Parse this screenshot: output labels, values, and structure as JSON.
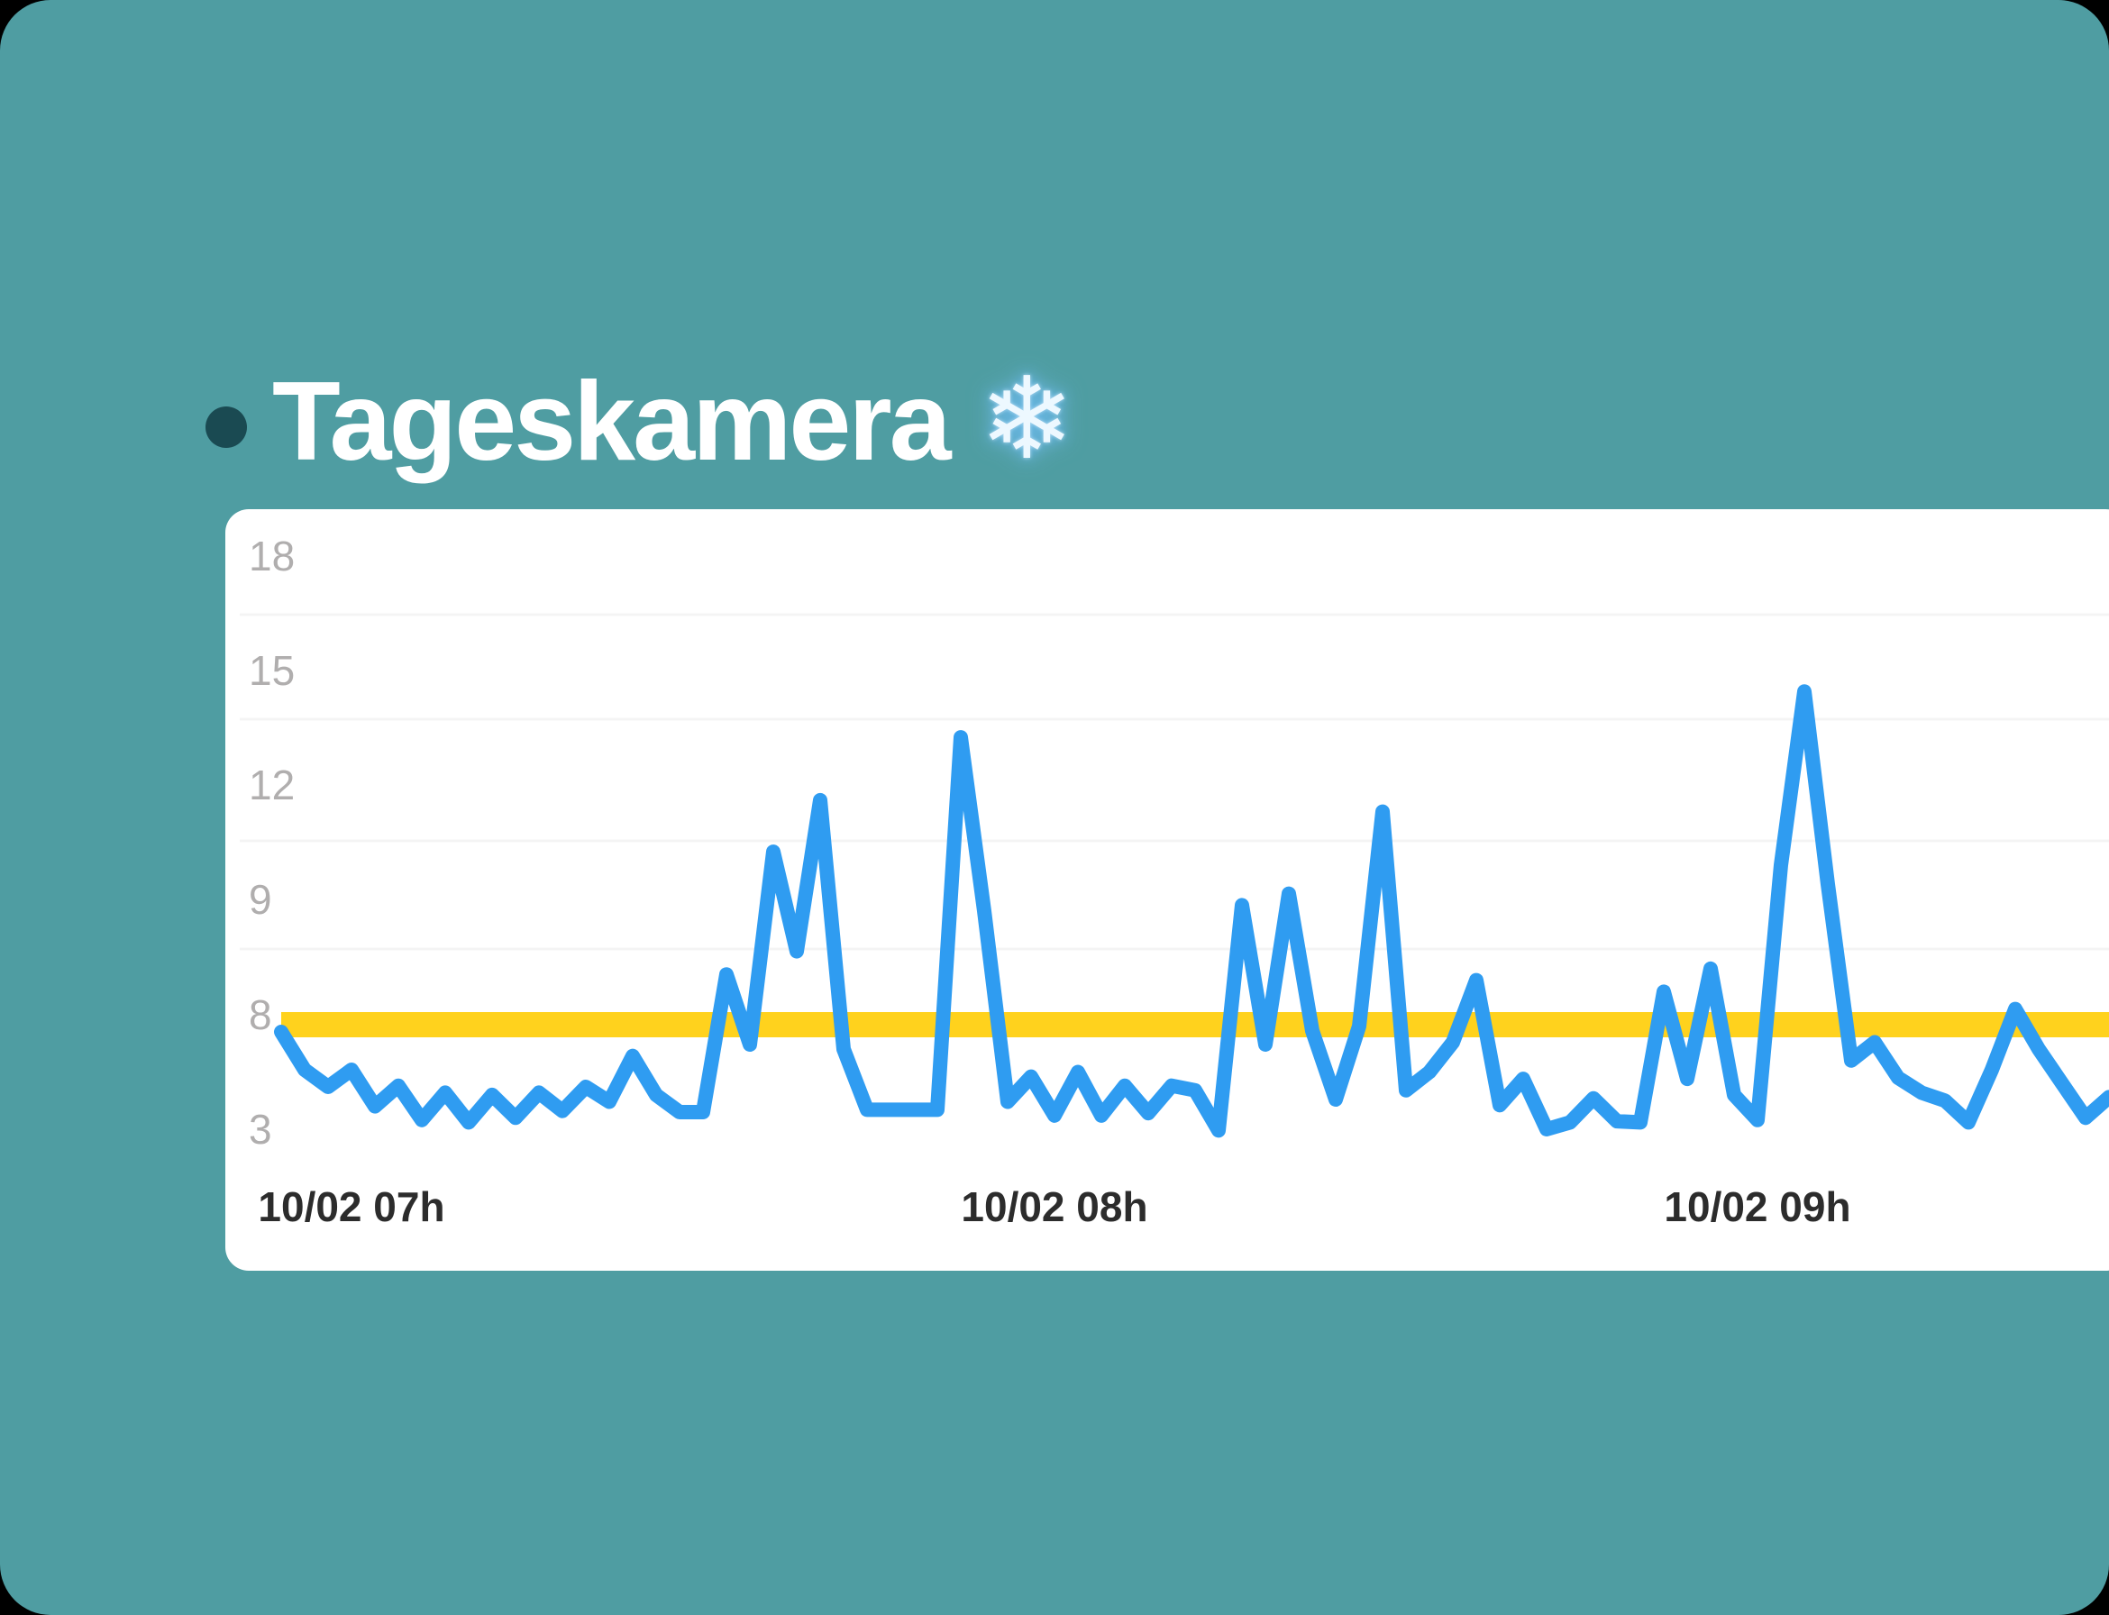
{
  "window": {
    "background_color": "#4F9DA2",
    "outer_background": "#000000"
  },
  "header": {
    "title": "Tageskamera",
    "icon": "snowflake",
    "snowflake_char": "❄",
    "bullet_color": "#1A4A52"
  },
  "card": {
    "background_color": "#FFFFFF"
  },
  "chart_data": {
    "type": "line",
    "title": "Tageskamera",
    "y_axis": {
      "tick_labels": [
        18,
        15,
        12,
        9,
        8,
        3
      ],
      "spacing_note": "ticks rendered evenly spaced top-to-bottom (non-linear value axis)",
      "label_color": "#B0AEAE"
    },
    "x_axis": {
      "tick_labels": [
        "10/02 07h",
        "10/02 08h",
        "10/02 09h"
      ],
      "start_time": "06:54",
      "step_minutes": 2,
      "label_color": "#2C2C2C"
    },
    "threshold": {
      "value": 8,
      "color": "#FFD21D"
    },
    "grid": true,
    "gridline_color": "#F4F4F4",
    "legend_position": "none",
    "series": [
      {
        "name": "Tageskamera",
        "color": "#2F9CF1",
        "values": [
          7.25,
          5.6,
          4.85,
          5.6,
          4.0,
          4.9,
          3.4,
          4.6,
          3.3,
          4.5,
          3.5,
          4.6,
          3.8,
          4.85,
          4.2,
          6.2,
          4.5,
          3.75,
          3.75,
          8.35,
          6.7,
          10.25,
          8.55,
          11.6,
          6.5,
          3.85,
          3.85,
          3.85,
          3.85,
          13.25,
          8.9,
          4.2,
          5.3,
          3.6,
          5.5,
          3.6,
          4.9,
          3.7,
          4.9,
          4.7,
          2.95,
          8.95,
          6.7,
          9.15,
          7.3,
          4.3,
          7.5,
          11.3,
          4.7,
          5.5,
          6.8,
          8.3,
          4.05,
          5.2,
          3.0,
          3.3,
          4.35,
          3.35,
          3.3,
          8.2,
          5.2,
          8.4,
          4.5,
          3.4,
          9.9,
          14.45,
          9.4,
          6.0,
          6.8,
          5.25,
          4.6,
          4.25,
          3.3,
          5.6,
          8.05,
          6.5,
          5.0,
          3.5,
          4.4
        ]
      }
    ]
  }
}
